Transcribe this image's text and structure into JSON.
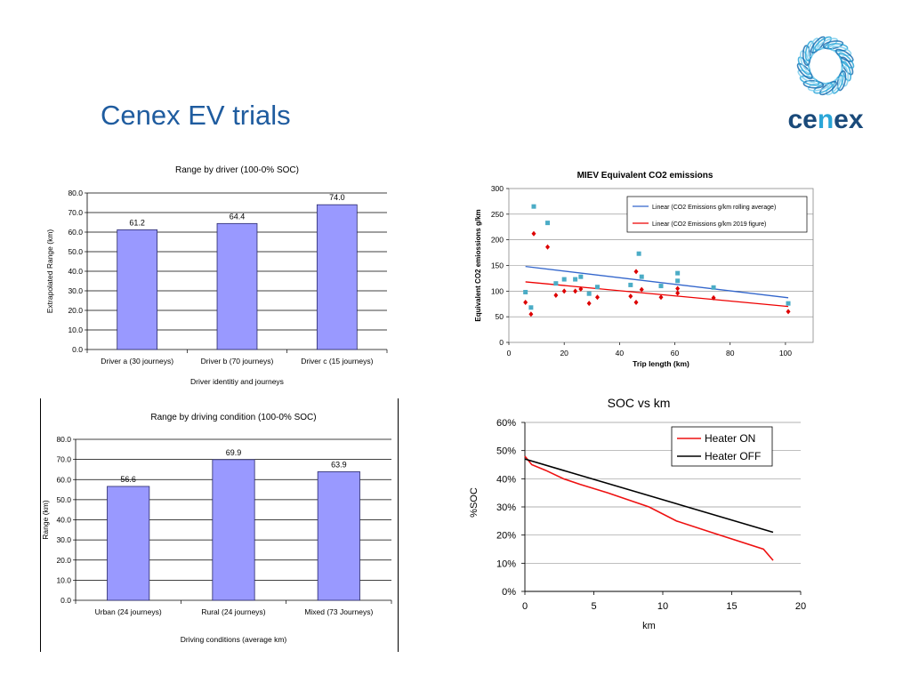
{
  "slide": {
    "title": "Cenex EV trials",
    "logo_text": "cenex",
    "colors": {
      "title": "#1f5c9f",
      "logo_dark": "#1a4a7a",
      "logo_light": "#2aa6d8"
    }
  },
  "chart_data": [
    {
      "id": "driver",
      "type": "bar",
      "title": "Range by driver (100-0% SOC)",
      "xlabel": "Driver  identitiy  and  journeys",
      "ylabel": "Extrapolated Range (km)",
      "categories": [
        "Driver a (30 journeys)",
        "Driver b (70 journeys)",
        "Driver c (15 journeys)"
      ],
      "values": [
        61.2,
        64.4,
        74.0
      ],
      "value_labels": [
        "61.2",
        "64.4",
        "74.0"
      ],
      "ylim": [
        0,
        80
      ],
      "yticks": [
        "0.0",
        "10.0",
        "20.0",
        "30.0",
        "40.0",
        "50.0",
        "60.0",
        "70.0",
        "80.0"
      ],
      "grid": true,
      "bar_color": "#9999ff"
    },
    {
      "id": "co2",
      "type": "scatter",
      "title": "MIEV Equivalent CO2 emissions",
      "xlabel": "Trip length (km)",
      "ylabel": "Equivalent CO2 emiossions g/km",
      "xlim": [
        0,
        110
      ],
      "ylim": [
        0,
        300
      ],
      "xticks": [
        "0",
        "20",
        "40",
        "60",
        "80",
        "100"
      ],
      "yticks": [
        "0",
        "50",
        "100",
        "150",
        "200",
        "250",
        "300"
      ],
      "grid": true,
      "legend_position": "top-right",
      "series": [
        {
          "marker": "square",
          "color": "#4bacc6",
          "points": [
            [
              6,
              98
            ],
            [
              8,
              68
            ],
            [
              9,
              265
            ],
            [
              14,
              233
            ],
            [
              17,
              115
            ],
            [
              20,
              123
            ],
            [
              24,
              123
            ],
            [
              26,
              128
            ],
            [
              29,
              95
            ],
            [
              32,
              108
            ],
            [
              44,
              112
            ],
            [
              47,
              173
            ],
            [
              48,
              128
            ],
            [
              55,
              110
            ],
            [
              61,
              135
            ],
            [
              61,
              120
            ],
            [
              74,
              107
            ],
            [
              101,
              76
            ]
          ]
        },
        {
          "marker": "diamond",
          "color": "#dd0000",
          "points": [
            [
              6,
              78
            ],
            [
              8,
              55
            ],
            [
              9,
              212
            ],
            [
              14,
              186
            ],
            [
              17,
              92
            ],
            [
              20,
              100
            ],
            [
              24,
              100
            ],
            [
              26,
              104
            ],
            [
              29,
              76
            ],
            [
              32,
              88
            ],
            [
              44,
              90
            ],
            [
              46,
              138
            ],
            [
              46,
              78
            ],
            [
              48,
              103
            ],
            [
              55,
              88
            ],
            [
              61,
              96
            ],
            [
              61,
              105
            ],
            [
              74,
              87
            ],
            [
              101,
              60
            ]
          ]
        }
      ],
      "lines": [
        {
          "name": "Linear (CO2 Emissions g/km rolling average)",
          "color": "#3366cc",
          "x": [
            6,
            101
          ],
          "y": [
            148,
            87
          ]
        },
        {
          "name": "Linear (CO2 Emissions g/km 2019 figure)",
          "color": "#ee0000",
          "x": [
            6,
            101
          ],
          "y": [
            118,
            70
          ]
        }
      ]
    },
    {
      "id": "condition",
      "type": "bar",
      "title": "Range by driving condition (100-0% SOC)",
      "xlabel": "Driving conditions (average km)",
      "ylabel": "Range (km)",
      "categories": [
        "Urban (24 journeys)",
        "Rural (24 journeys)",
        "Mixed (73 Journeys)"
      ],
      "values": [
        56.6,
        69.9,
        63.9
      ],
      "value_labels": [
        "56.6",
        "69.9",
        "63.9"
      ],
      "ylim": [
        0,
        80
      ],
      "yticks": [
        "0.0",
        "10.0",
        "20.0",
        "30.0",
        "40.0",
        "50.0",
        "60.0",
        "70.0",
        "80.0"
      ],
      "grid": true,
      "bar_color": "#9999ff"
    },
    {
      "id": "soc",
      "type": "line",
      "title": "SOC vs km",
      "xlabel": "km",
      "ylabel": "%SOC",
      "xlim": [
        0,
        20
      ],
      "ylim": [
        0,
        60
      ],
      "xticks": [
        "0",
        "5",
        "10",
        "15",
        "20"
      ],
      "yticks": [
        "0%",
        "10%",
        "20%",
        "30%",
        "40%",
        "50%",
        "60%"
      ],
      "grid": true,
      "legend_position": "top-right",
      "series": [
        {
          "name": "Heater ON",
          "color": "#ee1111",
          "x": [
            0,
            0.5,
            1.5,
            2.8,
            4,
            6,
            9,
            11,
            13.5,
            17.3,
            18
          ],
          "y": [
            48,
            45,
            43,
            40,
            38,
            35,
            30,
            25,
            21,
            15,
            11
          ]
        },
        {
          "name": "Heater OFF",
          "color": "#000000",
          "x": [
            0,
            18
          ],
          "y": [
            47,
            21
          ]
        }
      ]
    }
  ]
}
